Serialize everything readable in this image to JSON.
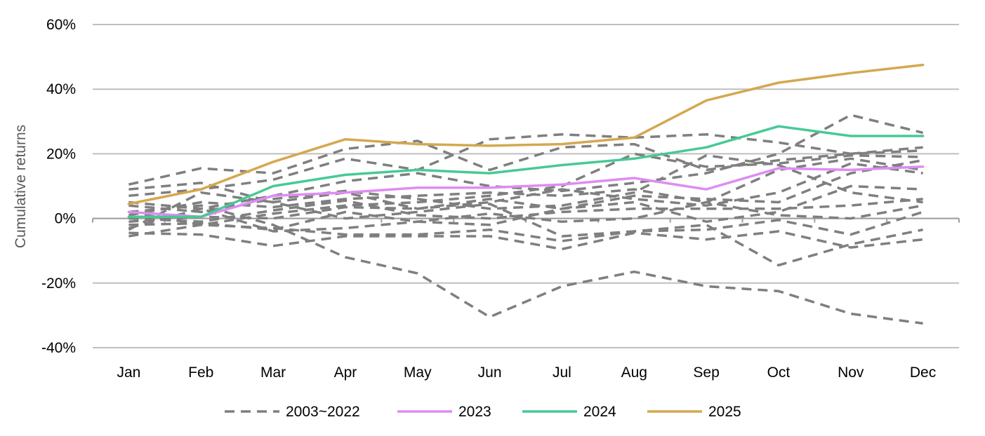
{
  "chart_data": {
    "type": "line",
    "title": "",
    "xlabel": "",
    "ylabel": "Cumulative returns",
    "categories": [
      "Jan",
      "Feb",
      "Mar",
      "Apr",
      "May",
      "Jun",
      "Jul",
      "Aug",
      "Sep",
      "Oct",
      "Nov",
      "Dec"
    ],
    "y_ticks": [
      -40,
      -20,
      0,
      20,
      40,
      60
    ],
    "y_tick_labels": [
      "-40%",
      "-20%",
      "0%",
      "20%",
      "40%",
      "60%"
    ],
    "ylim": [
      -40,
      60
    ],
    "grid": "horizontal",
    "legend_position": "bottom",
    "historical_group": {
      "name": "2003~2022",
      "color": "#7f7f7f",
      "style": "dashed",
      "series": [
        [
          10.5,
          15.5,
          14,
          21.5,
          24,
          15,
          22,
          23,
          15,
          18,
          20,
          22
        ],
        [
          9,
          11,
          5,
          8,
          3,
          5,
          9,
          6,
          4,
          8,
          17,
          14
        ],
        [
          7,
          9,
          12,
          18.5,
          15,
          24.5,
          26,
          25,
          26,
          23.5,
          20,
          21
        ],
        [
          5,
          3,
          7,
          11.5,
          14,
          10,
          8.5,
          11,
          14,
          20,
          32,
          26.5
        ],
        [
          4,
          2,
          6,
          8.5,
          6,
          3,
          4,
          8,
          19.5,
          16.5,
          8,
          5
        ],
        [
          2,
          -2,
          1.5,
          4,
          5,
          7,
          10,
          20,
          16,
          17,
          19.5,
          19
        ],
        [
          1,
          5,
          3.5,
          6,
          7,
          8,
          7,
          9,
          5,
          15,
          18.5,
          15
        ],
        [
          0,
          -1,
          2.5,
          5.5,
          1,
          0,
          2,
          3,
          3,
          3,
          4,
          6
        ],
        [
          -1,
          0.5,
          0,
          3.5,
          3,
          6,
          3,
          7,
          6,
          5,
          14,
          18
        ],
        [
          -2,
          -1.5,
          -3.5,
          2,
          -1,
          -2,
          3,
          5,
          -1,
          2,
          10,
          9
        ],
        [
          -3,
          3,
          -4,
          -3,
          -1,
          1.5,
          -1,
          0,
          5,
          1,
          0,
          4
        ],
        [
          -3.5,
          8,
          5,
          0,
          2,
          4.5,
          -5.5,
          -4,
          -3.5,
          -0.5,
          -5,
          2
        ],
        [
          -4.5,
          -5,
          -8.5,
          -5.5,
          -5.5,
          -5.5,
          -9.5,
          -4.5,
          -6.5,
          -4,
          -9,
          -6.5
        ],
        [
          -5.5,
          -2,
          -3,
          -5,
          -5,
          -3.5,
          -7,
          -4,
          -2,
          -14.5,
          -8,
          -3.5
        ],
        [
          2,
          4,
          -2,
          -12,
          -17,
          -30.5,
          -21,
          -16.5,
          -21,
          -22.5,
          -29.5,
          -32.5
        ]
      ]
    },
    "series": [
      {
        "name": "2023",
        "color": "#df8cf3",
        "values": [
          2,
          0.5,
          7,
          8,
          9.5,
          9.5,
          10.5,
          12.5,
          9,
          15.5,
          15,
          16
        ]
      },
      {
        "name": "2024",
        "color": "#47c996",
        "values": [
          0.5,
          0.5,
          10,
          13.5,
          15,
          14,
          16.5,
          18.5,
          22,
          28.5,
          25.5,
          25.5
        ]
      },
      {
        "name": "2025",
        "color": "#d4a84f",
        "values": [
          4.5,
          9,
          17.5,
          24.5,
          23,
          22.5,
          23,
          25,
          36.5,
          42,
          45,
          47.5
        ]
      }
    ]
  },
  "legend": {
    "items": [
      {
        "label": "2003~2022",
        "color": "#7f7f7f",
        "style": "dashed"
      },
      {
        "label": "2023",
        "color": "#df8cf3",
        "style": "solid"
      },
      {
        "label": "2024",
        "color": "#47c996",
        "style": "solid"
      },
      {
        "label": "2025",
        "color": "#d4a84f",
        "style": "solid"
      }
    ]
  }
}
